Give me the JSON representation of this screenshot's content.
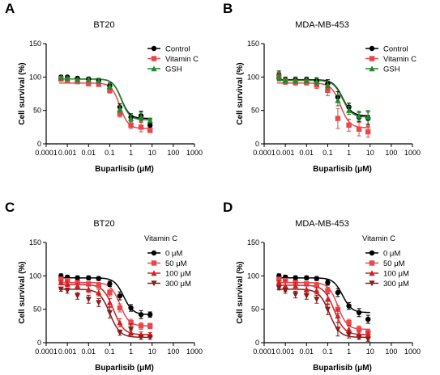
{
  "chart_data": [
    {
      "panel": "A",
      "type": "scatter",
      "title": "BT20",
      "xlabel": "Buparlisib (μM)",
      "ylabel": "Cell survival (%)",
      "xscale": "log",
      "xlim": [
        0.0001,
        1000
      ],
      "ylim": [
        0,
        150
      ],
      "xticks": [
        "0.0001",
        "0.001",
        "0.01",
        "0.1",
        "1",
        "10",
        "100",
        "1000"
      ],
      "yticks": [
        0,
        50,
        100,
        150
      ],
      "legend_title": "",
      "legend_position": "top-right",
      "x": [
        0.0005,
        0.001,
        0.003,
        0.01,
        0.03,
        0.1,
        0.3,
        1,
        3,
        8
      ],
      "series": [
        {
          "name": "Control",
          "color": "#000000",
          "marker": "circle",
          "values": [
            100,
            100,
            98,
            97,
            95,
            87,
            55,
            40,
            42,
            28
          ],
          "errors": [
            2,
            2,
            2,
            3,
            3,
            4,
            5,
            5,
            7,
            3
          ],
          "fit": {
            "top": 97,
            "bottom": 38,
            "ic50": 0.35,
            "hill": 2.2
          }
        },
        {
          "name": "Vitamin C",
          "color": "#e8474b",
          "marker": "square",
          "values": [
            97,
            95,
            93,
            90,
            89,
            80,
            45,
            28,
            25,
            20
          ],
          "errors": [
            2,
            2,
            2,
            3,
            3,
            4,
            5,
            5,
            7,
            3
          ],
          "fit": {
            "top": 91,
            "bottom": 23,
            "ic50": 0.3,
            "hill": 2.2
          }
        },
        {
          "name": "GSH",
          "color": "#1f8a2e",
          "marker": "triangle",
          "values": [
            99,
            98,
            96,
            96,
            94,
            86,
            52,
            38,
            40,
            35
          ],
          "errors": [
            2,
            2,
            2,
            3,
            3,
            4,
            5,
            5,
            7,
            3
          ],
          "fit": {
            "top": 97,
            "bottom": 36,
            "ic50": 0.35,
            "hill": 2.2
          }
        }
      ]
    },
    {
      "panel": "B",
      "type": "scatter",
      "title": "MDA-MB-453",
      "xlabel": "Buparlisib (μM)",
      "ylabel": "Cell survival (%)",
      "xscale": "log",
      "xlim": [
        0.0001,
        1000
      ],
      "ylim": [
        0,
        150
      ],
      "xticks": [
        "0.0001",
        "0.001",
        "0.01",
        "0.1",
        "1",
        "10",
        "100",
        "1000"
      ],
      "yticks": [
        0,
        50,
        100,
        150
      ],
      "legend_title": "",
      "legend_position": "top-right",
      "x": [
        0.0005,
        0.001,
        0.003,
        0.01,
        0.03,
        0.1,
        0.3,
        1,
        3,
        8
      ],
      "series": [
        {
          "name": "Control",
          "color": "#000000",
          "marker": "circle",
          "values": [
            103,
            96,
            96,
            96,
            94,
            90,
            70,
            55,
            40,
            38
          ],
          "errors": [
            6,
            4,
            4,
            4,
            5,
            6,
            8,
            6,
            7,
            10
          ],
          "fit": {
            "top": 96,
            "bottom": 42,
            "ic50": 0.5,
            "hill": 2.0
          }
        },
        {
          "name": "Vitamin C",
          "color": "#e8474b",
          "marker": "square",
          "values": [
            100,
            93,
            92,
            92,
            88,
            80,
            38,
            28,
            22,
            18
          ],
          "errors": [
            6,
            4,
            4,
            4,
            5,
            8,
            15,
            9,
            10,
            8
          ],
          "fit": {
            "top": 91,
            "bottom": 24,
            "ic50": 0.4,
            "hill": 2.0
          }
        },
        {
          "name": "GSH",
          "color": "#1f8a2e",
          "marker": "triangle",
          "values": [
            101,
            95,
            95,
            95,
            93,
            88,
            65,
            50,
            42,
            40
          ],
          "errors": [
            6,
            4,
            4,
            4,
            5,
            6,
            8,
            6,
            7,
            10
          ],
          "fit": {
            "top": 95,
            "bottom": 40,
            "ic50": 0.5,
            "hill": 2.0
          }
        }
      ]
    },
    {
      "panel": "C",
      "type": "scatter",
      "title": "BT20",
      "xlabel": "Buparlisib (μM)",
      "ylabel": "Cell survival (%)",
      "xscale": "log",
      "xlim": [
        0.0001,
        1000
      ],
      "ylim": [
        0,
        150
      ],
      "xticks": [
        "0.0001",
        "0.001",
        "0.01",
        "0.1",
        "1",
        "10",
        "100",
        "1000"
      ],
      "yticks": [
        0,
        50,
        100,
        150
      ],
      "legend_title": "Vitamin C",
      "legend_position": "top-right",
      "x": [
        0.0005,
        0.001,
        0.003,
        0.01,
        0.03,
        0.1,
        0.3,
        1,
        3,
        8
      ],
      "series": [
        {
          "name": "0 μM",
          "color": "#000000",
          "marker": "circle",
          "values": [
            100,
            98,
            97,
            97,
            96,
            88,
            70,
            52,
            42,
            42
          ],
          "errors": [
            3,
            3,
            3,
            3,
            3,
            4,
            6,
            5,
            6,
            4
          ],
          "fit": {
            "top": 97,
            "bottom": 42,
            "ic50": 0.45,
            "hill": 2.0
          }
        },
        {
          "name": "50 μM",
          "color": "#e8474b",
          "marker": "square",
          "values": [
            95,
            93,
            90,
            88,
            86,
            75,
            52,
            30,
            25,
            25
          ],
          "errors": [
            3,
            3,
            3,
            3,
            4,
            5,
            6,
            5,
            5,
            4
          ],
          "fit": {
            "top": 90,
            "bottom": 25,
            "ic50": 0.3,
            "hill": 2.0
          }
        },
        {
          "name": "100 μM",
          "color": "#d11f24",
          "marker": "triangle",
          "values": [
            90,
            88,
            85,
            80,
            75,
            60,
            30,
            15,
            12,
            12
          ],
          "errors": [
            3,
            4,
            4,
            5,
            5,
            6,
            6,
            4,
            4,
            3
          ],
          "fit": {
            "top": 87,
            "bottom": 12,
            "ic50": 0.15,
            "hill": 1.8
          }
        },
        {
          "name": "300 μM",
          "color": "#8b1a1a",
          "marker": "inv-triangle",
          "values": [
            80,
            78,
            70,
            65,
            60,
            45,
            15,
            20,
            8,
            8
          ],
          "errors": [
            3,
            4,
            5,
            6,
            6,
            8,
            4,
            8,
            3,
            3
          ],
          "fit": {
            "top": 80,
            "bottom": 8,
            "ic50": 0.1,
            "hill": 1.8
          }
        }
      ]
    },
    {
      "panel": "D",
      "type": "scatter",
      "title": "MDA-MB-453",
      "xlabel": "Buparlisib (μM)",
      "ylabel": "Cell survival (%)",
      "xscale": "log",
      "xlim": [
        0.0001,
        1000
      ],
      "ylim": [
        0,
        150
      ],
      "xticks": [
        "0.0001",
        "0.001",
        "0.01",
        "0.1",
        "1",
        "10",
        "100",
        "1000"
      ],
      "yticks": [
        0,
        50,
        100,
        150
      ],
      "legend_title": "Vitamin C",
      "legend_position": "top-right",
      "x": [
        0.0005,
        0.001,
        0.003,
        0.01,
        0.03,
        0.1,
        0.3,
        1,
        3,
        8
      ],
      "series": [
        {
          "name": "0 μM",
          "color": "#000000",
          "marker": "circle",
          "values": [
            100,
            98,
            97,
            97,
            96,
            90,
            75,
            55,
            45,
            35
          ],
          "errors": [
            3,
            3,
            3,
            3,
            3,
            4,
            6,
            5,
            6,
            6
          ],
          "fit": {
            "top": 97,
            "bottom": 45,
            "ic50": 0.5,
            "hill": 2.0
          }
        },
        {
          "name": "50 μM",
          "color": "#e8474b",
          "marker": "square",
          "values": [
            95,
            93,
            90,
            88,
            86,
            78,
            50,
            30,
            20,
            15
          ],
          "errors": [
            3,
            3,
            3,
            3,
            4,
            5,
            6,
            5,
            5,
            4
          ],
          "fit": {
            "top": 90,
            "bottom": 20,
            "ic50": 0.3,
            "hill": 2.0
          }
        },
        {
          "name": "100 μM",
          "color": "#d11f24",
          "marker": "triangle",
          "values": [
            90,
            85,
            85,
            80,
            78,
            65,
            40,
            20,
            12,
            12
          ],
          "errors": [
            3,
            8,
            5,
            5,
            5,
            8,
            10,
            6,
            5,
            4
          ],
          "fit": {
            "top": 86,
            "bottom": 12,
            "ic50": 0.2,
            "hill": 1.8
          }
        },
        {
          "name": "300 μM",
          "color": "#8b1a1a",
          "marker": "inv-triangle",
          "values": [
            82,
            78,
            72,
            70,
            65,
            50,
            20,
            12,
            8,
            5
          ],
          "errors": [
            3,
            4,
            5,
            5,
            6,
            8,
            10,
            5,
            3,
            3
          ],
          "fit": {
            "top": 80,
            "bottom": 8,
            "ic50": 0.12,
            "hill": 1.8
          }
        }
      ]
    }
  ]
}
